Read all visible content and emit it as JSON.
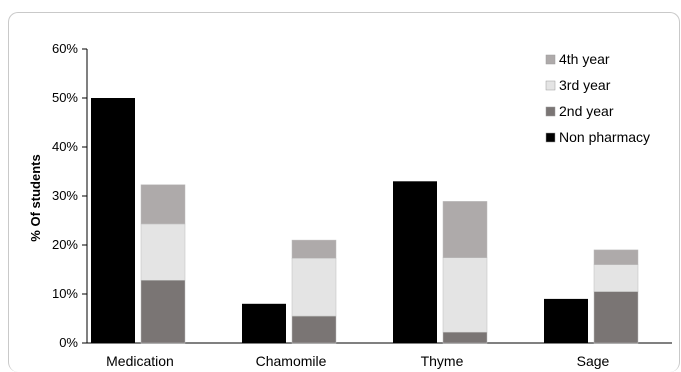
{
  "chart_data": {
    "type": "bar",
    "ylabel": "% Of students",
    "ylim": [
      0,
      60
    ],
    "yticks": [
      "0%",
      "10%",
      "20%",
      "30%",
      "40%",
      "50%",
      "60%"
    ],
    "categories": [
      "Medication",
      "Chamomile",
      "Thyme",
      "Sage"
    ],
    "grid": false,
    "legend_position": "top-right",
    "series": [
      {
        "name": "Non pharmacy",
        "group": "non-pharmacy",
        "color": "#000000",
        "values": [
          50,
          8,
          33,
          9
        ]
      },
      {
        "name": "2nd year",
        "group": "pharmacy",
        "color": "#7a7574",
        "values": [
          12.8,
          5.5,
          2.2,
          10.5
        ]
      },
      {
        "name": "3rd year",
        "group": "pharmacy",
        "color": "#e4e4e4",
        "values": [
          11.5,
          11.8,
          15.2,
          5.5
        ]
      },
      {
        "name": "4th year",
        "group": "pharmacy",
        "color": "#aeaaaa",
        "values": [
          8,
          3.7,
          11.5,
          3
        ]
      }
    ],
    "legend_order": [
      "4th year",
      "3rd year",
      "2nd year",
      "Non pharmacy"
    ]
  }
}
